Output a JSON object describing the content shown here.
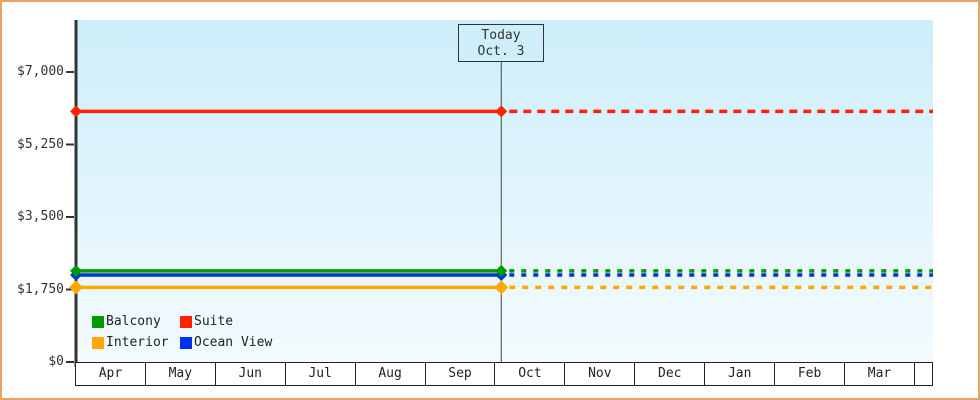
{
  "frame": {
    "border_color": "#eaa55e",
    "background": "#ffffff"
  },
  "plot": {
    "background_top": "#cdeefb",
    "background_bottom": "#f3fbfe",
    "axis_color": "#333333",
    "text_color": "#333333"
  },
  "chart_data": {
    "type": "line",
    "title": "",
    "xlabel": "",
    "ylabel": "",
    "x_axis": {
      "months": [
        "Apr",
        "May",
        "Jun",
        "Jul",
        "Aug",
        "Sep",
        "Oct",
        "Nov",
        "Dec",
        "Jan",
        "Feb",
        "Mar"
      ]
    },
    "y_axis": {
      "ticks": [
        {
          "label": "$0",
          "value": 0
        },
        {
          "label": "$1,750",
          "value": 1750
        },
        {
          "label": "$3,500",
          "value": 3500
        },
        {
          "label": "$5,250",
          "value": 5250
        },
        {
          "label": "$7,000",
          "value": 7000
        }
      ],
      "max": 7000,
      "grid": false
    },
    "series": [
      {
        "name": "Balcony",
        "color": "#009b00",
        "value": 2200,
        "marker": "diamond"
      },
      {
        "name": "Suite",
        "color": "#ff2200",
        "value": 6050,
        "marker": "diamond"
      },
      {
        "name": "Interior",
        "color": "#ffa800",
        "value": 1800,
        "marker": "diamond"
      },
      {
        "name": "Ocean View",
        "color": "#0038d0",
        "value": 2100,
        "marker": "diamond"
      }
    ],
    "line_style": {
      "before_today": "solid",
      "after_today": "dashed"
    },
    "today": {
      "title": "Today",
      "date_label": "Oct. 3",
      "month": "Oct",
      "day": 3
    }
  },
  "legend": {
    "position": "bottom-left",
    "items": [
      {
        "label": "Balcony",
        "color": "#009b00"
      },
      {
        "label": "Suite",
        "color": "#ff2200"
      },
      {
        "label": "Interior",
        "color": "#ffa800"
      },
      {
        "label": "Ocean View",
        "color": "#0033ee"
      }
    ]
  }
}
